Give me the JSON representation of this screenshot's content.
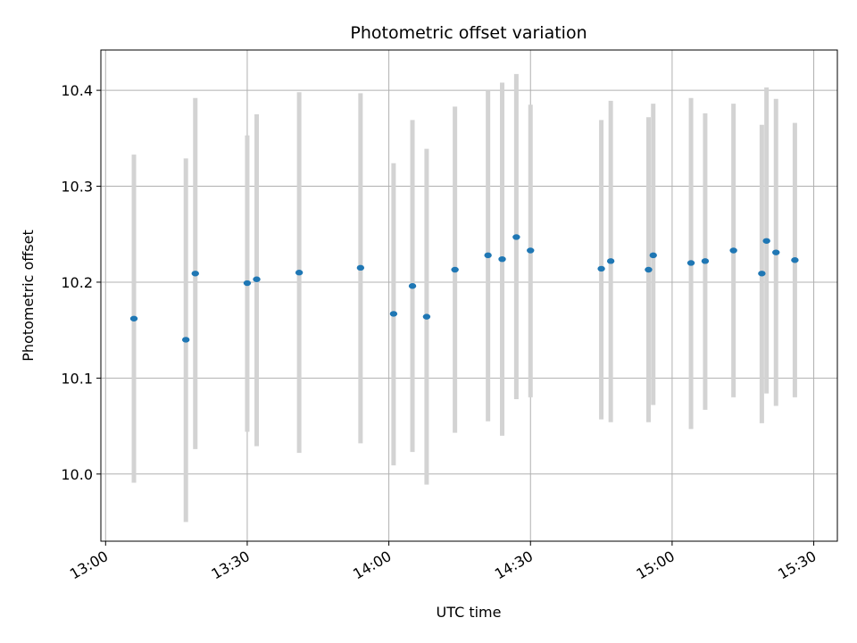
{
  "chart_data": {
    "type": "scatter",
    "title": "Photometric offset variation",
    "xlabel": "UTC time",
    "ylabel": "Photometric offset",
    "x_ticks": [
      "13:00",
      "13:30",
      "14:00",
      "14:30",
      "15:00",
      "15:30"
    ],
    "xlim": [
      "12:59",
      "15:35"
    ],
    "ylim": [
      9.93,
      10.442
    ],
    "y_ticks": [
      10.0,
      10.1,
      10.2,
      10.3,
      10.4
    ],
    "y_tick_labels": [
      "10.0",
      "10.1",
      "10.2",
      "10.3",
      "10.4"
    ],
    "grid": true,
    "marker_color": "#1f77b4",
    "errorbar_color": "#d3d3d3",
    "series": [
      {
        "points": [
          {
            "x": "13:06",
            "y": 10.162,
            "ylow": 9.991,
            "yhigh": 10.333
          },
          {
            "x": "13:17",
            "y": 10.14,
            "ylow": 9.95,
            "yhigh": 10.329
          },
          {
            "x": "13:19",
            "y": 10.209,
            "ylow": 10.026,
            "yhigh": 10.392
          },
          {
            "x": "13:30",
            "y": 10.199,
            "ylow": 10.044,
            "yhigh": 10.353
          },
          {
            "x": "13:32",
            "y": 10.203,
            "ylow": 10.029,
            "yhigh": 10.375
          },
          {
            "x": "13:41",
            "y": 10.21,
            "ylow": 10.022,
            "yhigh": 10.398
          },
          {
            "x": "13:54",
            "y": 10.215,
            "ylow": 10.032,
            "yhigh": 10.397
          },
          {
            "x": "14:01",
            "y": 10.167,
            "ylow": 10.009,
            "yhigh": 10.324
          },
          {
            "x": "14:05",
            "y": 10.196,
            "ylow": 10.023,
            "yhigh": 10.369
          },
          {
            "x": "14:08",
            "y": 10.164,
            "ylow": 9.989,
            "yhigh": 10.339
          },
          {
            "x": "14:14",
            "y": 10.213,
            "ylow": 10.043,
            "yhigh": 10.383
          },
          {
            "x": "14:21",
            "y": 10.228,
            "ylow": 10.055,
            "yhigh": 10.4
          },
          {
            "x": "14:24",
            "y": 10.224,
            "ylow": 10.04,
            "yhigh": 10.408
          },
          {
            "x": "14:27",
            "y": 10.247,
            "ylow": 10.078,
            "yhigh": 10.417
          },
          {
            "x": "14:30",
            "y": 10.233,
            "ylow": 10.08,
            "yhigh": 10.385
          },
          {
            "x": "14:45",
            "y": 10.214,
            "ylow": 10.057,
            "yhigh": 10.369
          },
          {
            "x": "14:47",
            "y": 10.222,
            "ylow": 10.054,
            "yhigh": 10.389
          },
          {
            "x": "14:55",
            "y": 10.213,
            "ylow": 10.054,
            "yhigh": 10.372
          },
          {
            "x": "14:56",
            "y": 10.228,
            "ylow": 10.072,
            "yhigh": 10.386
          },
          {
            "x": "15:04",
            "y": 10.22,
            "ylow": 10.047,
            "yhigh": 10.392
          },
          {
            "x": "15:07",
            "y": 10.222,
            "ylow": 10.067,
            "yhigh": 10.376
          },
          {
            "x": "15:13",
            "y": 10.233,
            "ylow": 10.08,
            "yhigh": 10.386
          },
          {
            "x": "15:19",
            "y": 10.209,
            "ylow": 10.053,
            "yhigh": 10.364
          },
          {
            "x": "15:20",
            "y": 10.243,
            "ylow": 10.084,
            "yhigh": 10.403
          },
          {
            "x": "15:22",
            "y": 10.231,
            "ylow": 10.071,
            "yhigh": 10.391
          },
          {
            "x": "15:26",
            "y": 10.223,
            "ylow": 10.08,
            "yhigh": 10.366
          }
        ]
      }
    ]
  }
}
